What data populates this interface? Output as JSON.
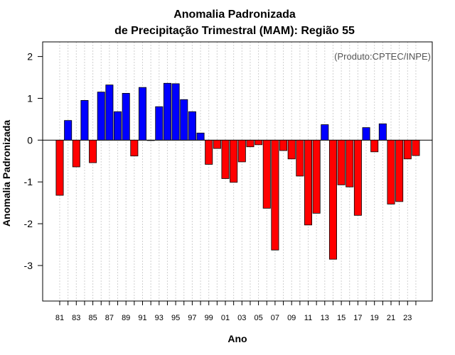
{
  "chart_data": {
    "type": "bar",
    "title": "Anomalia Padronizada",
    "subtitle": "de Precipitação Trimestral (MAM): Região 55",
    "xlabel": "Ano",
    "ylabel": "Anomalia Padronizada",
    "annotation": "(Produto:CPTEC/INPE)",
    "ylim": [
      -3.85,
      2.35
    ],
    "yticks": [
      -3,
      -2,
      -1,
      0,
      1,
      2
    ],
    "ytick_labels": [
      "-3",
      "-2",
      "-1",
      "0",
      "1",
      "2"
    ],
    "grid": "vertical dotted",
    "positive_color": "#0000ff",
    "negative_color": "#ff0000",
    "categories": [
      "1981",
      "1982",
      "1983",
      "1984",
      "1985",
      "1986",
      "1987",
      "1988",
      "1989",
      "1990",
      "1991",
      "1992",
      "1993",
      "1994",
      "1995",
      "1996",
      "1997",
      "1998",
      "1999",
      "2000",
      "2001",
      "2002",
      "2003",
      "2004",
      "2005",
      "2006",
      "2007",
      "2008",
      "2009",
      "2010",
      "2011",
      "2012",
      "2013",
      "2014",
      "2015",
      "2016",
      "2017",
      "2018",
      "2019",
      "2020",
      "2021",
      "2022",
      "2023",
      "2024"
    ],
    "xtick_labels": [
      "81",
      "",
      "83",
      "",
      "85",
      "",
      "87",
      "",
      "89",
      "",
      "91",
      "",
      "93",
      "",
      "95",
      "",
      "97",
      "",
      "99",
      "",
      "01",
      "",
      "03",
      "",
      "05",
      "",
      "07",
      "",
      "09",
      "",
      "11",
      "",
      "13",
      "",
      "15",
      "",
      "17",
      "",
      "19",
      "",
      "21",
      "",
      "23",
      ""
    ],
    "values": [
      -1.32,
      0.47,
      -0.64,
      0.95,
      -0.54,
      1.15,
      1.32,
      0.68,
      1.12,
      -0.38,
      1.26,
      -0.01,
      0.8,
      1.36,
      1.35,
      0.97,
      0.68,
      0.17,
      -0.58,
      -0.2,
      -0.92,
      -1.01,
      -0.52,
      -0.16,
      -0.11,
      -1.63,
      -2.63,
      -0.25,
      -0.45,
      -0.86,
      -2.03,
      -1.75,
      0.37,
      -2.85,
      -1.07,
      -1.12,
      -1.8,
      0.3,
      -0.28,
      0.39,
      -1.53,
      -1.47,
      -0.45,
      -0.37
    ]
  }
}
